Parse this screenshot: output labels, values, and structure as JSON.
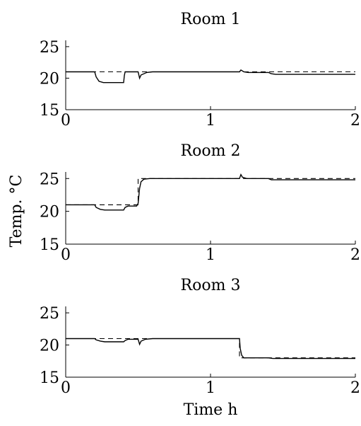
{
  "y_axis_label": "Temp. °C",
  "x_axis_label": "Time h",
  "chart_data": [
    {
      "type": "line",
      "title": "Room 1",
      "xlim": [
        0,
        2
      ],
      "ylim": [
        15,
        26
      ],
      "xticks": [
        0,
        1,
        2
      ],
      "yticks": [
        15,
        20,
        25
      ],
      "series": [
        {
          "style": "dashed",
          "x": [
            0,
            2
          ],
          "y": [
            21,
            21
          ]
        },
        {
          "style": "solid",
          "x": [
            0,
            0.2,
            0.21,
            0.23,
            0.26,
            0.4,
            0.405,
            0.41,
            0.44,
            0.5,
            0.51,
            0.52,
            0.56,
            0.6,
            1.2,
            1.21,
            1.23,
            1.26,
            1.4,
            1.42,
            1.45,
            2
          ],
          "y": [
            21,
            21,
            20.2,
            19.5,
            19.3,
            19.3,
            20.4,
            21,
            21,
            21,
            20.0,
            20.5,
            20.9,
            21,
            21,
            21.3,
            21.0,
            20.9,
            20.9,
            20.7,
            20.6,
            20.6
          ]
        }
      ]
    },
    {
      "type": "line",
      "title": "Room 2",
      "xlim": [
        0,
        2
      ],
      "ylim": [
        15,
        26
      ],
      "xticks": [
        0,
        1,
        2
      ],
      "yticks": [
        15,
        20,
        25
      ],
      "series": [
        {
          "style": "dashed",
          "x": [
            0,
            0.5,
            0.5,
            2
          ],
          "y": [
            21,
            21,
            25,
            25
          ]
        },
        {
          "style": "solid",
          "x": [
            0,
            0.2,
            0.21,
            0.24,
            0.27,
            0.4,
            0.41,
            0.43,
            0.49,
            0.5,
            0.51,
            0.52,
            0.54,
            0.58,
            1.2,
            1.21,
            1.22,
            1.25,
            1.4,
            1.42,
            1.45,
            2
          ],
          "y": [
            21,
            21,
            20.6,
            20.3,
            20.2,
            20.2,
            20.6,
            20.8,
            20.8,
            21.2,
            23.5,
            24.5,
            24.9,
            25,
            25,
            25.6,
            25.2,
            25,
            25,
            24.8,
            24.8,
            24.8
          ]
        }
      ]
    },
    {
      "type": "line",
      "title": "Room 3",
      "xlim": [
        0,
        2
      ],
      "ylim": [
        15,
        26
      ],
      "xticks": [
        0,
        1,
        2
      ],
      "yticks": [
        15,
        20,
        25
      ],
      "series": [
        {
          "style": "dashed",
          "x": [
            0,
            1.2,
            1.2,
            2
          ],
          "y": [
            21,
            21,
            18,
            18
          ]
        },
        {
          "style": "solid",
          "x": [
            0,
            0.2,
            0.21,
            0.24,
            0.27,
            0.4,
            0.41,
            0.43,
            0.49,
            0.5,
            0.51,
            0.52,
            0.55,
            0.6,
            1.2,
            1.205,
            1.215,
            1.23,
            1.26,
            1.4,
            1.43,
            2
          ],
          "y": [
            21,
            21,
            20.8,
            20.6,
            20.5,
            20.5,
            20.7,
            20.9,
            20.9,
            20.9,
            20.1,
            20.6,
            20.9,
            21,
            21,
            19.5,
            18.4,
            18.0,
            18.0,
            18.0,
            17.9,
            17.9
          ]
        }
      ]
    }
  ]
}
